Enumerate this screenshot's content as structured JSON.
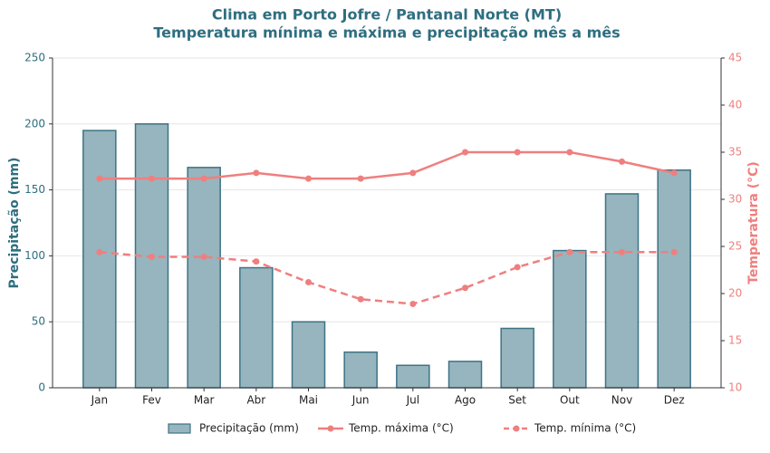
{
  "chart_data": {
    "type": "bar-line",
    "title": "Clima em Porto Jofre / Pantanal Norte (MT)",
    "subtitle": "Temperatura mínima e máxima e precipitação mês a mês",
    "ylabel": "Precipitação (mm)",
    "y2label": "Temperatura (°C)",
    "categories": [
      "Jan",
      "Fev",
      "Mar",
      "Abr",
      "Mai",
      "Jun",
      "Jul",
      "Ago",
      "Set",
      "Out",
      "Nov",
      "Dez"
    ],
    "series": [
      {
        "name": "Precipitação (mm)",
        "type": "bar",
        "color": "#97b5be",
        "edge_color": "#3d7384",
        "values": [
          195,
          200,
          167,
          91,
          50,
          27,
          17,
          20,
          45,
          104,
          147,
          165
        ]
      },
      {
        "name": "Temp. máxima (°C)",
        "type": "line",
        "axis": "y2",
        "line_style": "solid",
        "color": "#ef7f7f",
        "values": [
          32.2,
          32.2,
          32.2,
          32.8,
          32.2,
          32.2,
          32.8,
          35.0,
          35.0,
          35.0,
          34.0,
          32.8
        ]
      },
      {
        "name": "Temp. mínima (°C)",
        "type": "line",
        "axis": "y2",
        "line_style": "dashed",
        "color": "#ef7f7f",
        "values": [
          24.4,
          23.9,
          23.9,
          23.4,
          21.2,
          19.4,
          18.9,
          20.6,
          22.8,
          24.4,
          24.4,
          24.4
        ]
      }
    ],
    "ylim": [
      0,
      250
    ],
    "yticks": [
      0,
      50,
      100,
      150,
      200,
      250
    ],
    "y2lim": [
      10,
      45
    ],
    "y2ticks": [
      10,
      15,
      20,
      25,
      30,
      35,
      40,
      45
    ],
    "grid": true,
    "legend": "bottom"
  }
}
